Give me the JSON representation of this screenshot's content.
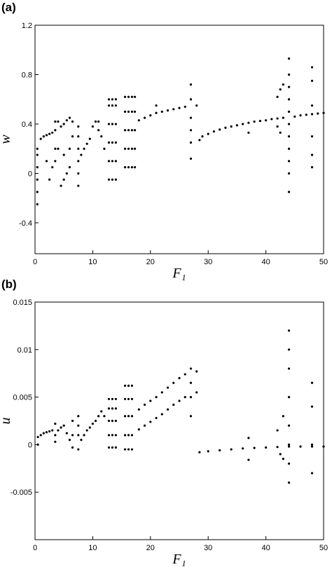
{
  "chart_data": [
    {
      "type": "scatter",
      "title": "(a)",
      "x_label": "F₁",
      "y_label": "w",
      "xlim": [
        0,
        50
      ],
      "xticks": [
        0,
        10,
        20,
        30,
        40,
        50
      ],
      "ylim": [
        -0.65,
        1.2
      ],
      "yticks": [
        -0.4,
        0,
        0.4,
        0.8,
        1.2
      ],
      "series": [
        {
          "color": "#000000",
          "x": [
            0.4,
            0.4,
            0.4,
            0.4,
            0.4,
            0.4,
            1,
            1.5,
            2,
            2.5,
            3,
            3.5,
            3.5,
            3.5,
            3.5,
            2,
            2.5,
            3,
            4,
            4.5,
            5,
            5.5,
            6,
            6.5,
            4.5,
            5,
            5.5,
            6,
            6,
            6.5,
            5,
            4,
            7.5,
            7.5,
            7.5,
            7.5,
            7.5,
            7.5,
            8,
            8.5,
            9,
            9.5,
            10,
            10.5,
            11,
            11.5,
            12,
            11,
            12.8,
            12.8,
            12.8,
            12.8,
            12.8,
            12.8,
            13.4,
            13.4,
            13.4,
            13.4,
            13.4,
            13.4,
            14,
            14,
            14,
            14,
            14,
            14,
            15.6,
            15.6,
            15.6,
            15.6,
            15.6,
            16.2,
            16.2,
            16.2,
            16.2,
            16.2,
            16.8,
            16.8,
            16.8,
            16.8,
            16.8,
            17.3,
            17.3,
            17.3,
            17.3,
            17.3,
            18,
            19,
            20,
            21,
            22,
            23,
            24,
            25,
            26,
            28,
            21,
            27,
            27,
            27,
            27,
            27,
            27,
            28.5,
            29,
            30,
            31,
            32,
            33,
            34,
            35,
            36,
            37,
            38,
            39,
            40,
            41,
            42,
            43,
            45,
            46,
            47,
            48,
            49,
            50,
            37,
            42,
            42.5,
            42.5,
            43,
            42,
            44,
            44,
            44,
            44,
            44,
            44,
            44,
            44,
            44,
            44,
            44,
            48,
            48,
            48,
            48,
            48,
            48
          ],
          "y": [
            -0.25,
            -0.15,
            -0.05,
            0.05,
            0.15,
            0.2,
            0.28,
            0.3,
            0.31,
            0.32,
            0.33,
            0.35,
            0.2,
            0.1,
            0.42,
            0.1,
            -0.05,
            0.05,
            0.42,
            0.38,
            0.4,
            0.43,
            0.45,
            0.42,
            -0.1,
            -0.05,
            0,
            0.05,
            0.2,
            0.3,
            0.15,
            0.2,
            0.38,
            0.3,
            0.2,
            0.1,
            0,
            -0.1,
            0.15,
            0.2,
            0.24,
            0.28,
            0.38,
            0.42,
            0.35,
            0.3,
            0.2,
            0.42,
            -0.05,
            0.1,
            0.25,
            0.4,
            0.55,
            0.6,
            -0.05,
            0.1,
            0.25,
            0.4,
            0.55,
            0.6,
            -0.05,
            0.1,
            0.25,
            0.4,
            0.55,
            0.6,
            0.05,
            0.2,
            0.35,
            0.5,
            0.62,
            0.05,
            0.2,
            0.35,
            0.5,
            0.62,
            0.05,
            0.2,
            0.35,
            0.5,
            0.62,
            0.05,
            0.2,
            0.35,
            0.5,
            0.62,
            0.43,
            0.45,
            0.47,
            0.49,
            0.5,
            0.51,
            0.52,
            0.53,
            0.54,
            0.55,
            0.55,
            0.12,
            0.25,
            0.35,
            0.45,
            0.6,
            0.72,
            0.27,
            0.3,
            0.32,
            0.34,
            0.355,
            0.37,
            0.38,
            0.39,
            0.4,
            0.41,
            0.42,
            0.425,
            0.43,
            0.44,
            0.445,
            0.45,
            0.46,
            0.47,
            0.475,
            0.48,
            0.485,
            0.49,
            0.33,
            0.38,
            0.33,
            0.68,
            0.72,
            0.62,
            -0.15,
            0,
            0.1,
            0.2,
            0.3,
            0.4,
            0.5,
            0.6,
            0.7,
            0.8,
            0.93,
            0.05,
            0.15,
            0.3,
            0.55,
            0.75,
            0.86
          ]
        }
      ]
    },
    {
      "type": "scatter",
      "title": "(b)",
      "x_label": "F₁",
      "y_label": "u",
      "xlim": [
        0,
        50
      ],
      "xticks": [
        0,
        10,
        20,
        30,
        40,
        50
      ],
      "ylim": [
        -0.01,
        0.015
      ],
      "yticks": [
        -0.005,
        0,
        0.005,
        0.01,
        0.015
      ],
      "series": [
        {
          "color": "#000000",
          "x": [
            0.5,
            0.5,
            1,
            1.5,
            2,
            2.5,
            3,
            3.5,
            3.5,
            3.5,
            4,
            4.5,
            5,
            5.5,
            6,
            6.5,
            6.5,
            6.5,
            7.5,
            7.5,
            7.5,
            7.5,
            8,
            8.5,
            9,
            9.5,
            10,
            10.5,
            11,
            11.5,
            12,
            12.8,
            12.8,
            12.8,
            12.8,
            12.8,
            13.4,
            13.4,
            13.4,
            13.4,
            13.4,
            14,
            14,
            14,
            14,
            14,
            15.6,
            15.6,
            15.6,
            15.6,
            15.6,
            16.2,
            16.2,
            16.2,
            16.2,
            16.2,
            16.8,
            16.8,
            16.8,
            16.8,
            16.8,
            18,
            19,
            20,
            21,
            22,
            23,
            24,
            25,
            26,
            28,
            18,
            19,
            20,
            21,
            22,
            23,
            24,
            25,
            26,
            28,
            27,
            27,
            27,
            27,
            28.5,
            30,
            32,
            34,
            36,
            38,
            40,
            42,
            44,
            46,
            48,
            50,
            37,
            37,
            42,
            42.5,
            43,
            43,
            44,
            44,
            44,
            44,
            44,
            44,
            44,
            44,
            48,
            48,
            48,
            48
          ],
          "y": [
            0,
            0.0008,
            0.001,
            0.0012,
            0.0013,
            0.0014,
            0.0015,
            0.0022,
            0.001,
            0.0003,
            0.0015,
            0.0018,
            0.002,
            0.0012,
            0.0005,
            0.0025,
            0.001,
            -0.0003,
            0.003,
            0.002,
            0.001,
            -0.0005,
            0.0005,
            0.001,
            0.0015,
            0.0018,
            0.0022,
            0.0025,
            0.003,
            0.0035,
            0.003,
            -0.0003,
            0.001,
            0.0025,
            0.0038,
            0.0048,
            -0.0003,
            0.001,
            0.0025,
            0.0038,
            0.0048,
            -0.0003,
            0.001,
            0.0025,
            0.0038,
            0.0048,
            -0.0005,
            0.001,
            0.003,
            0.0048,
            0.0062,
            -0.0005,
            0.001,
            0.003,
            0.0048,
            0.0062,
            -0.0005,
            0.001,
            0.003,
            0.0048,
            0.0062,
            0.0037,
            0.0042,
            0.0046,
            0.005,
            0.0055,
            0.006,
            0.0065,
            0.007,
            0.0074,
            0.0077,
            0.0016,
            0.002,
            0.0024,
            0.0028,
            0.0032,
            0.0037,
            0.0042,
            0.0046,
            0.005,
            0.0055,
            0.003,
            0.005,
            0.0065,
            0.008,
            -0.0008,
            -0.0007,
            -0.0006,
            -0.0005,
            -0.0004,
            -0.00035,
            -0.0003,
            -0.00025,
            -0.0002,
            -0.0002,
            -0.0002,
            -0.0002,
            0.0007,
            -0.0016,
            0.0015,
            -0.001,
            0.003,
            -0.0015,
            -0.004,
            -0.002,
            0,
            0.002,
            0.005,
            0.008,
            0.01,
            0.012,
            -0.003,
            0,
            0.004,
            0.0065
          ]
        }
      ]
    }
  ]
}
